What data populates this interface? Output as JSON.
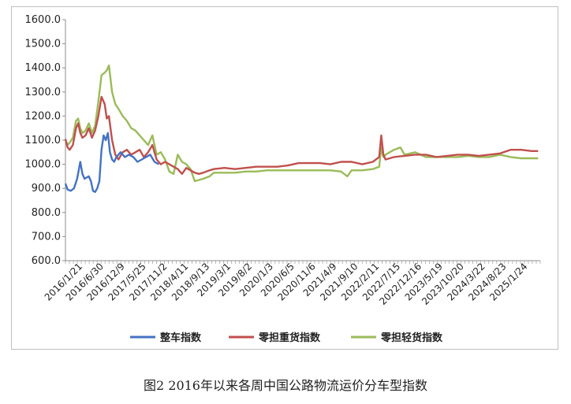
{
  "caption": "图2 2016年以来各周中国公路物流运价分车型指数",
  "chart_data": {
    "type": "line",
    "ylim": [
      600,
      1600
    ],
    "yticks": [
      "600.0",
      "700.0",
      "800.0",
      "900.0",
      "1000.0",
      "1100.0",
      "1200.0",
      "1300.0",
      "1400.0",
      "1500.0",
      "1600.0"
    ],
    "grid": false,
    "legend": "bottom",
    "x_tick_labels": [
      "2016/1/21",
      "2016/6/30",
      "2016/12/9",
      "2017/5/25",
      "2017/11/2",
      "2018/4/11",
      "2018/9/13",
      "2019/3/1",
      "2019/8/2",
      "2020/1/3",
      "2020/6/5",
      "2020/11/6",
      "2021/4/9",
      "2021/9/10",
      "2022/2/11",
      "2022/7/15",
      "2022/12/16",
      "2023/5/19",
      "2023/10/20",
      "2024/3/22",
      "2024/8/23",
      "2025/1/24"
    ],
    "x_range": [
      0,
      22.4
    ],
    "series": [
      {
        "name": "整车指数",
        "color": "#4472c4",
        "x": [
          0,
          0.1,
          0.25,
          0.4,
          0.55,
          0.7,
          0.8,
          0.9,
          1.0,
          1.1,
          1.2,
          1.3,
          1.4,
          1.5,
          1.6,
          1.7,
          1.8,
          1.9,
          2.0,
          2.1,
          2.2,
          2.3,
          2.4,
          2.6,
          2.8,
          3.0,
          3.2,
          3.4,
          3.6,
          3.8,
          4.0,
          4.2,
          4.4
        ],
        "values": [
          920,
          895,
          890,
          900,
          940,
          1010,
          960,
          940,
          945,
          950,
          930,
          890,
          885,
          900,
          930,
          1060,
          1120,
          1100,
          1130,
          1050,
          1020,
          1010,
          1030,
          1050,
          1030,
          1040,
          1030,
          1010,
          1020,
          1030,
          1040,
          1010,
          1000
        ]
      },
      {
        "name": "零担重货指数",
        "color": "#c0504d",
        "x": [
          0,
          0.1,
          0.2,
          0.35,
          0.5,
          0.6,
          0.7,
          0.8,
          0.95,
          1.1,
          1.25,
          1.4,
          1.55,
          1.7,
          1.85,
          1.95,
          2.05,
          2.2,
          2.35,
          2.5,
          2.7,
          2.9,
          3.1,
          3.3,
          3.5,
          3.7,
          3.9,
          4.1,
          4.3,
          4.5,
          4.7,
          4.9,
          5.1,
          5.3,
          5.5,
          5.7,
          5.9,
          6.1,
          6.3,
          6.5,
          6.8,
          7.0,
          7.5,
          8,
          8.5,
          9,
          9.5,
          10,
          10.5,
          11,
          11.5,
          12,
          12.5,
          13,
          13.5,
          14,
          14.5,
          14.8,
          14.9,
          15.0,
          15.1,
          15.3,
          15.5,
          16,
          16.5,
          17,
          17.5,
          18,
          18.5,
          19,
          19.5,
          20,
          20.5,
          21,
          21.5,
          22.0,
          22.3
        ],
        "values": [
          1105,
          1070,
          1060,
          1080,
          1150,
          1170,
          1130,
          1110,
          1120,
          1150,
          1110,
          1140,
          1200,
          1280,
          1250,
          1190,
          1200,
          1100,
          1040,
          1020,
          1050,
          1060,
          1040,
          1050,
          1060,
          1030,
          1050,
          1080,
          1020,
          1000,
          1010,
          1000,
          990,
          980,
          960,
          985,
          975,
          965,
          960,
          965,
          975,
          980,
          985,
          980,
          985,
          990,
          990,
          990,
          995,
          1005,
          1005,
          1005,
          1000,
          1010,
          1010,
          1000,
          1010,
          1030,
          1120,
          1040,
          1020,
          1025,
          1030,
          1035,
          1040,
          1040,
          1030,
          1035,
          1040,
          1040,
          1035,
          1040,
          1045,
          1060,
          1060,
          1055,
          1055
        ]
      },
      {
        "name": "零担轻货指数",
        "color": "#9bbb59",
        "x": [
          0,
          0.1,
          0.2,
          0.35,
          0.5,
          0.6,
          0.7,
          0.8,
          0.95,
          1.1,
          1.25,
          1.4,
          1.55,
          1.7,
          1.85,
          1.95,
          2.05,
          2.2,
          2.35,
          2.5,
          2.7,
          2.9,
          3.1,
          3.3,
          3.5,
          3.7,
          3.9,
          4.1,
          4.3,
          4.5,
          4.7,
          4.9,
          5.1,
          5.3,
          5.5,
          5.7,
          5.9,
          6.1,
          6.3,
          6.5,
          6.8,
          7.0,
          7.5,
          8,
          8.5,
          9,
          9.5,
          10,
          10.5,
          11,
          11.5,
          12,
          12.5,
          13,
          13.3,
          13.5,
          14,
          14.5,
          14.8,
          14.9,
          15.0,
          15.1,
          15.3,
          15.5,
          15.8,
          16,
          16.5,
          17,
          17.5,
          18,
          18.5,
          19,
          19.5,
          20,
          20.5,
          21,
          21.5,
          22.0,
          22.3
        ],
        "values": [
          1100,
          1080,
          1090,
          1110,
          1180,
          1190,
          1150,
          1130,
          1140,
          1170,
          1130,
          1160,
          1260,
          1370,
          1380,
          1390,
          1410,
          1300,
          1250,
          1230,
          1200,
          1180,
          1150,
          1140,
          1120,
          1100,
          1080,
          1120,
          1040,
          1050,
          1020,
          970,
          960,
          1040,
          1010,
          1000,
          980,
          930,
          935,
          940,
          950,
          965,
          965,
          965,
          970,
          970,
          975,
          975,
          975,
          975,
          975,
          975,
          975,
          970,
          950,
          975,
          975,
          980,
          990,
          1070,
          1030,
          1040,
          1050,
          1060,
          1070,
          1040,
          1050,
          1030,
          1030,
          1030,
          1030,
          1035,
          1030,
          1030,
          1040,
          1030,
          1025,
          1025,
          1025
        ]
      }
    ]
  }
}
